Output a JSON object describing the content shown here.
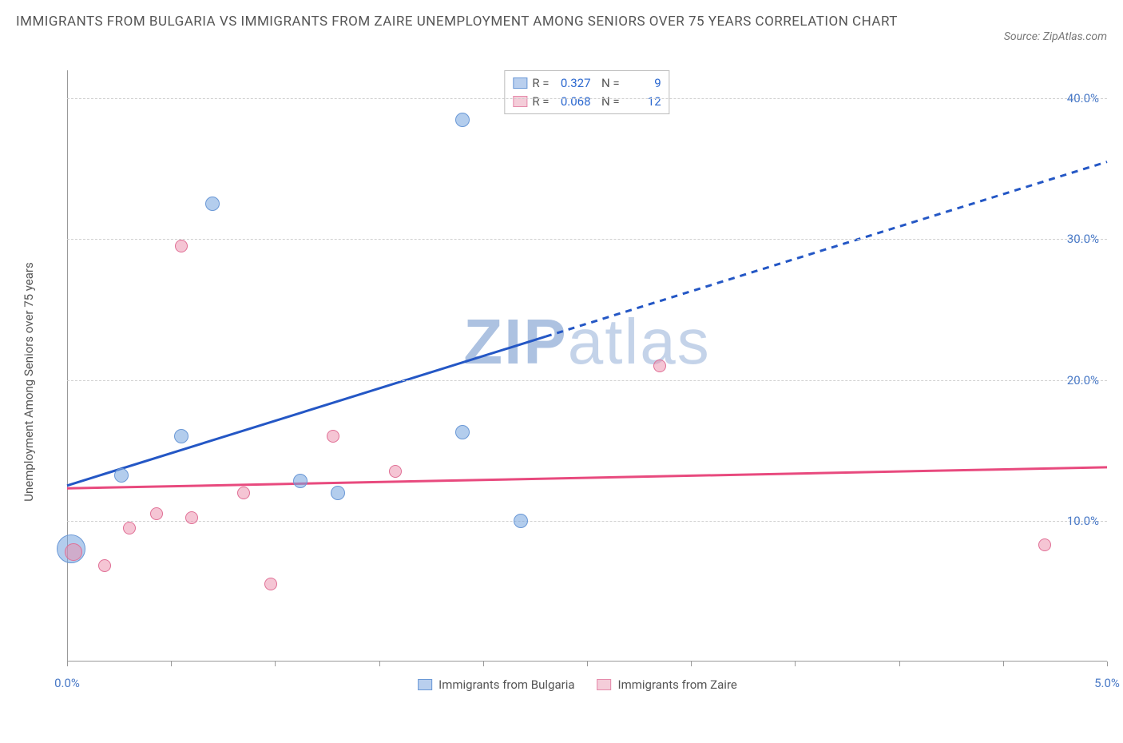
{
  "title": "IMMIGRANTS FROM BULGARIA VS IMMIGRANTS FROM ZAIRE UNEMPLOYMENT AMONG SENIORS OVER 75 YEARS CORRELATION CHART",
  "source_label": "Source: ZipAtlas.com",
  "watermark_bold": "ZIP",
  "watermark_light": "atlas",
  "ylabel": "Unemployment Among Seniors over 75 years",
  "chart": {
    "type": "scatter",
    "background_color": "#ffffff",
    "grid_color": "#d0d0d0",
    "axis_color": "#999999",
    "x": {
      "min": 0.0,
      "max": 5.0,
      "ticks": [
        0.0,
        0.5,
        1.0,
        1.5,
        2.0,
        2.5,
        3.0,
        3.5,
        4.0,
        4.5,
        5.0
      ],
      "label_ticks": [
        {
          "v": 0.0,
          "t": "0.0%"
        },
        {
          "v": 5.0,
          "t": "5.0%"
        }
      ],
      "label_color": "#4a7ac7",
      "label_fontsize": 15
    },
    "y": {
      "min": 0.0,
      "max": 42.0,
      "grid": [
        10.0,
        20.0,
        30.0,
        40.0
      ],
      "labels": [
        {
          "v": 10.0,
          "t": "10.0%"
        },
        {
          "v": 20.0,
          "t": "20.0%"
        },
        {
          "v": 30.0,
          "t": "30.0%"
        },
        {
          "v": 40.0,
          "t": "40.0%"
        }
      ],
      "label_color": "#4a7ac7",
      "label_fontsize": 15
    }
  },
  "series": [
    {
      "name": "Immigrants from Bulgaria",
      "fill": "rgba(117,164,222,0.55)",
      "stroke": "#6a98d6",
      "swatch_fill": "#b9cfee",
      "swatch_border": "#6a98d6",
      "R": "0.327",
      "N": "9",
      "trend": {
        "color": "#2457c5",
        "width": 3,
        "y_at_xmin": 12.5,
        "y_at_xmax": 35.5,
        "solid_until_x": 2.3
      },
      "points": [
        {
          "x": 0.02,
          "y": 8.0,
          "r": 18
        },
        {
          "x": 0.26,
          "y": 13.2,
          "r": 9
        },
        {
          "x": 0.55,
          "y": 16.0,
          "r": 9
        },
        {
          "x": 0.7,
          "y": 32.5,
          "r": 9
        },
        {
          "x": 1.12,
          "y": 12.8,
          "r": 9
        },
        {
          "x": 1.3,
          "y": 12.0,
          "r": 9
        },
        {
          "x": 1.9,
          "y": 38.5,
          "r": 9
        },
        {
          "x": 1.9,
          "y": 16.3,
          "r": 9
        },
        {
          "x": 2.18,
          "y": 10.0,
          "r": 9
        }
      ]
    },
    {
      "name": "Immigrants from Zaire",
      "fill": "rgba(236,140,170,0.5)",
      "stroke": "#e06f95",
      "swatch_fill": "#f4cdd9",
      "swatch_border": "#e58aab",
      "R": "0.068",
      "N": "12",
      "trend": {
        "color": "#e84a7e",
        "width": 3,
        "y_at_xmin": 12.3,
        "y_at_xmax": 13.8,
        "solid_until_x": 5.0
      },
      "points": [
        {
          "x": 0.03,
          "y": 7.8,
          "r": 11
        },
        {
          "x": 0.18,
          "y": 6.8,
          "r": 8
        },
        {
          "x": 0.3,
          "y": 9.5,
          "r": 8
        },
        {
          "x": 0.43,
          "y": 10.5,
          "r": 8
        },
        {
          "x": 0.55,
          "y": 29.5,
          "r": 8
        },
        {
          "x": 0.6,
          "y": 10.2,
          "r": 8
        },
        {
          "x": 0.85,
          "y": 12.0,
          "r": 8
        },
        {
          "x": 0.98,
          "y": 5.5,
          "r": 8
        },
        {
          "x": 1.28,
          "y": 16.0,
          "r": 8
        },
        {
          "x": 1.58,
          "y": 13.5,
          "r": 8
        },
        {
          "x": 2.85,
          "y": 21.0,
          "r": 8
        },
        {
          "x": 4.7,
          "y": 8.3,
          "r": 8
        }
      ]
    }
  ],
  "legend_bottom": [
    {
      "swatch_fill": "#b9cfee",
      "swatch_border": "#6a98d6",
      "label": "Immigrants from Bulgaria"
    },
    {
      "swatch_fill": "#f4cdd9",
      "swatch_border": "#e58aab",
      "label": "Immigrants from Zaire"
    }
  ]
}
